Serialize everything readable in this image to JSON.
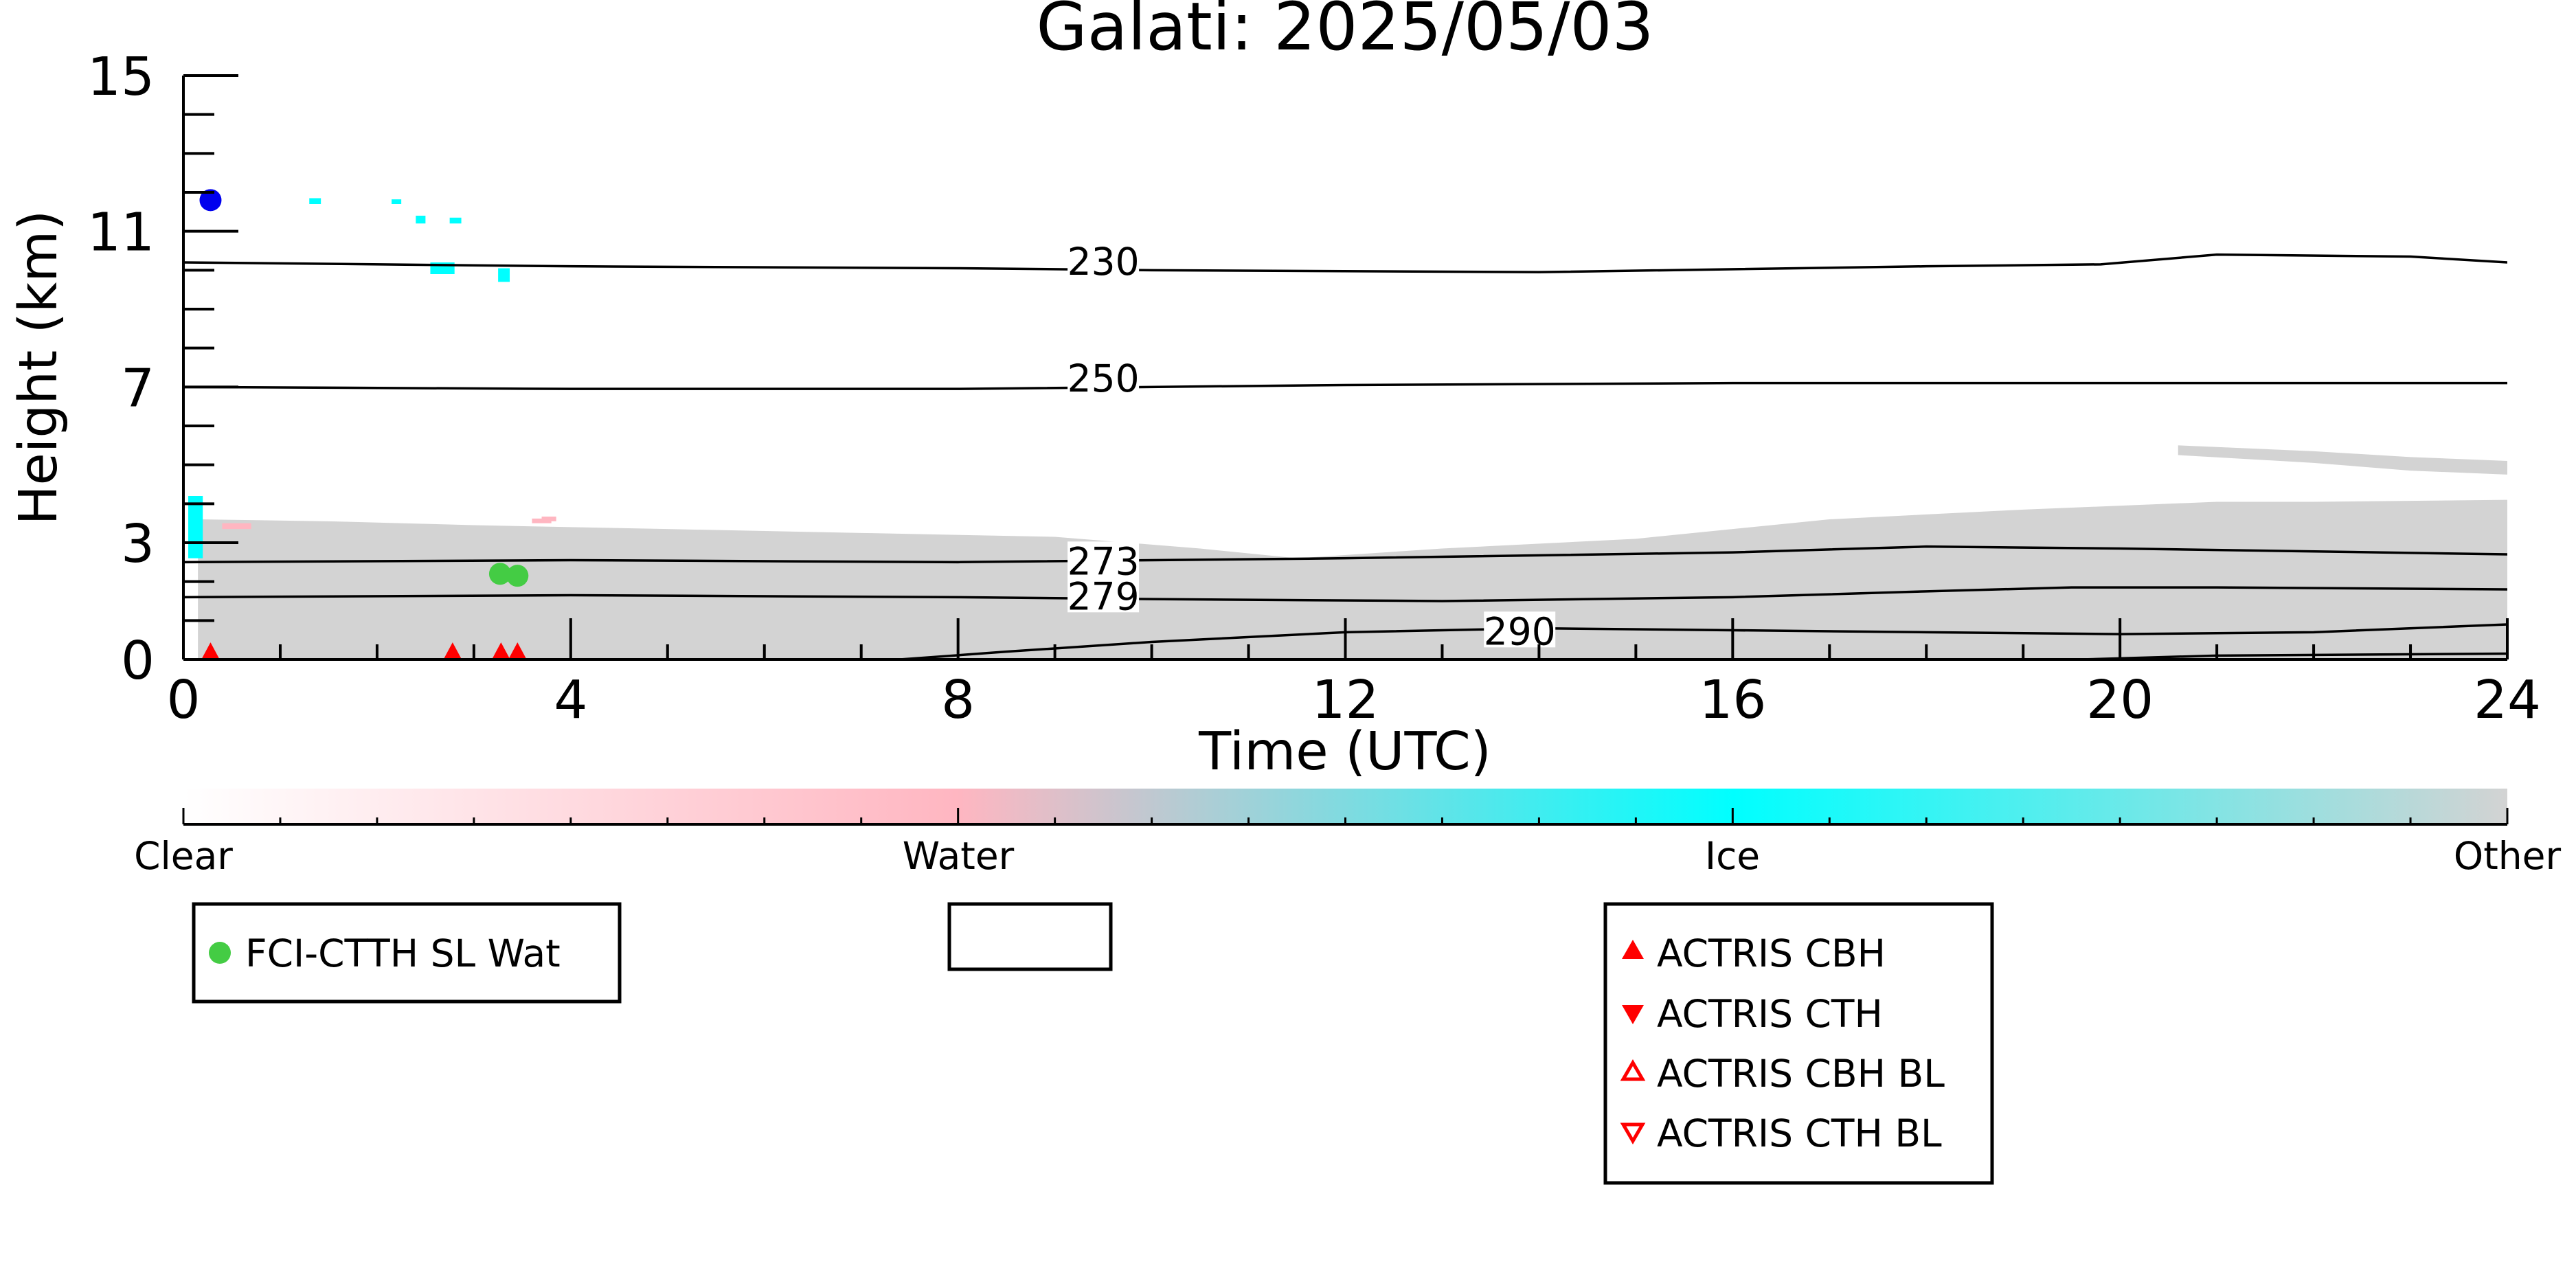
{
  "chart_data": {
    "type": "scatter",
    "title": "Galati: 2025/05/03",
    "xlabel": "Time (UTC)",
    "ylabel": "Height (km)",
    "xlim": [
      0,
      24
    ],
    "ylim": [
      0,
      15
    ],
    "xticks": [
      0,
      4,
      8,
      12,
      16,
      20,
      24
    ],
    "yticks": [
      0,
      3,
      7,
      11,
      15
    ],
    "temperature_contours": [
      {
        "label": "230",
        "label_at": [
          9.5,
          10.2
        ],
        "points": [
          [
            0,
            10.2
          ],
          [
            4,
            10.1
          ],
          [
            8,
            10.05
          ],
          [
            10,
            10.0
          ],
          [
            14,
            9.95
          ],
          [
            18,
            10.1
          ],
          [
            19.8,
            10.15
          ],
          [
            21,
            10.4
          ],
          [
            23,
            10.35
          ],
          [
            24,
            10.2
          ]
        ]
      },
      {
        "label": "250",
        "label_at": [
          9.5,
          7.2
        ],
        "points": [
          [
            0,
            7.0
          ],
          [
            4,
            6.95
          ],
          [
            8,
            6.95
          ],
          [
            12,
            7.05
          ],
          [
            16,
            7.1
          ],
          [
            20,
            7.1
          ],
          [
            24,
            7.1
          ]
        ]
      },
      {
        "label": "273",
        "label_at": [
          9.5,
          2.5
        ],
        "points": [
          [
            0,
            2.5
          ],
          [
            4,
            2.55
          ],
          [
            8,
            2.5
          ],
          [
            12,
            2.6
          ],
          [
            16,
            2.75
          ],
          [
            18,
            2.9
          ],
          [
            20,
            2.85
          ],
          [
            24,
            2.7
          ]
        ]
      },
      {
        "label": "279",
        "label_at": [
          9.5,
          1.6
        ],
        "points": [
          [
            0,
            1.6
          ],
          [
            4,
            1.65
          ],
          [
            8,
            1.6
          ],
          [
            10,
            1.55
          ],
          [
            13,
            1.5
          ],
          [
            16,
            1.6
          ],
          [
            18,
            1.75
          ],
          [
            19.5,
            1.85
          ],
          [
            21,
            1.85
          ],
          [
            24,
            1.8
          ]
        ]
      },
      {
        "label": "290",
        "label_at": [
          13.8,
          0.7
        ],
        "points": [
          [
            7.4,
            0
          ],
          [
            8.5,
            0.2
          ],
          [
            10,
            0.45
          ],
          [
            12,
            0.7
          ],
          [
            14,
            0.8
          ],
          [
            16,
            0.75
          ],
          [
            18,
            0.7
          ],
          [
            20,
            0.65
          ],
          [
            22,
            0.7
          ],
          [
            24,
            0.9
          ]
        ]
      },
      {
        "label": "",
        "points": [
          [
            19.6,
            0
          ],
          [
            21,
            0.1
          ],
          [
            24,
            0.15
          ]
        ]
      }
    ],
    "classification_fill": [
      {
        "class": "Other",
        "color": "#d3d3d3",
        "top": [
          [
            0.15,
            3.6
          ],
          [
            1.5,
            3.55
          ],
          [
            3,
            3.45
          ],
          [
            5,
            3.35
          ],
          [
            7,
            3.25
          ],
          [
            9,
            3.15
          ],
          [
            10.5,
            2.85
          ],
          [
            11.5,
            2.6
          ],
          [
            13,
            2.85
          ],
          [
            15,
            3.1
          ],
          [
            17,
            3.6
          ],
          [
            19,
            3.85
          ],
          [
            21,
            4.05
          ],
          [
            22,
            4.05
          ],
          [
            24,
            4.1
          ]
        ]
      },
      {
        "class": "Other",
        "color": "#d3d3d3",
        "top": [
          [
            20.6,
            5.5
          ],
          [
            22,
            5.35
          ],
          [
            23,
            5.2
          ],
          [
            24,
            5.1
          ]
        ],
        "bottom": [
          [
            20.6,
            5.25
          ],
          [
            22,
            5.05
          ],
          [
            23,
            4.85
          ],
          [
            24,
            4.75
          ]
        ]
      }
    ],
    "ice_patches": [
      [
        0.05,
        2.6,
        0.15,
        1.6
      ],
      [
        1.3,
        11.7,
        0.12,
        0.15
      ],
      [
        2.15,
        11.7,
        0.1,
        0.12
      ],
      [
        2.4,
        11.2,
        0.1,
        0.2
      ],
      [
        2.75,
        11.2,
        0.12,
        0.15
      ],
      [
        2.55,
        9.9,
        0.25,
        0.3
      ],
      [
        3.25,
        9.7,
        0.12,
        0.35
      ]
    ],
    "water_patches": [
      [
        0.4,
        3.35,
        0.3,
        0.15
      ],
      [
        3.6,
        3.5,
        0.2,
        0.12
      ],
      [
        3.7,
        3.55,
        0.15,
        0.12
      ]
    ],
    "series": [
      {
        "name": "FCI-CTTH SL Wat",
        "color": "#44cc44",
        "marker": "circle",
        "points": [
          [
            3.27,
            2.2
          ],
          [
            3.45,
            2.15
          ]
        ]
      },
      {
        "color": "#0000ee",
        "marker": "circle",
        "points": [
          [
            0.28,
            11.8
          ]
        ]
      },
      {
        "name": "ACTRIS CBH",
        "color": "#ff0000",
        "marker": "triangle-up",
        "points": [
          [
            0.28,
            0.05
          ],
          [
            2.78,
            0.05
          ],
          [
            3.28,
            0.05
          ],
          [
            3.45,
            0.05
          ]
        ]
      },
      {
        "name": "ACTRIS CTH",
        "color": "#ff0000",
        "marker": "triangle-down",
        "points": []
      },
      {
        "name": "ACTRIS CBH BL",
        "color": "#ff0000",
        "marker": "triangle-up-open",
        "points": []
      },
      {
        "name": "ACTRIS CTH BL",
        "color": "#ff0000",
        "marker": "triangle-down-open",
        "points": []
      }
    ],
    "colorbar": {
      "labels": [
        "Clear",
        "Water",
        "Ice",
        "Other"
      ],
      "stops": [
        {
          "pos": 0,
          "color": "#ffffff"
        },
        {
          "pos": 0.333,
          "color": "#ffb6c1"
        },
        {
          "pos": 0.667,
          "color": "#00ffff"
        },
        {
          "pos": 1,
          "color": "#d3d3d3"
        }
      ]
    },
    "legends": [
      {
        "entries": [
          "FCI-CTTH SL Wat"
        ]
      },
      {
        "entries": []
      },
      {
        "entries": [
          "ACTRIS CBH",
          "ACTRIS CTH",
          "ACTRIS CBH BL",
          "ACTRIS CTH BL"
        ]
      }
    ]
  }
}
